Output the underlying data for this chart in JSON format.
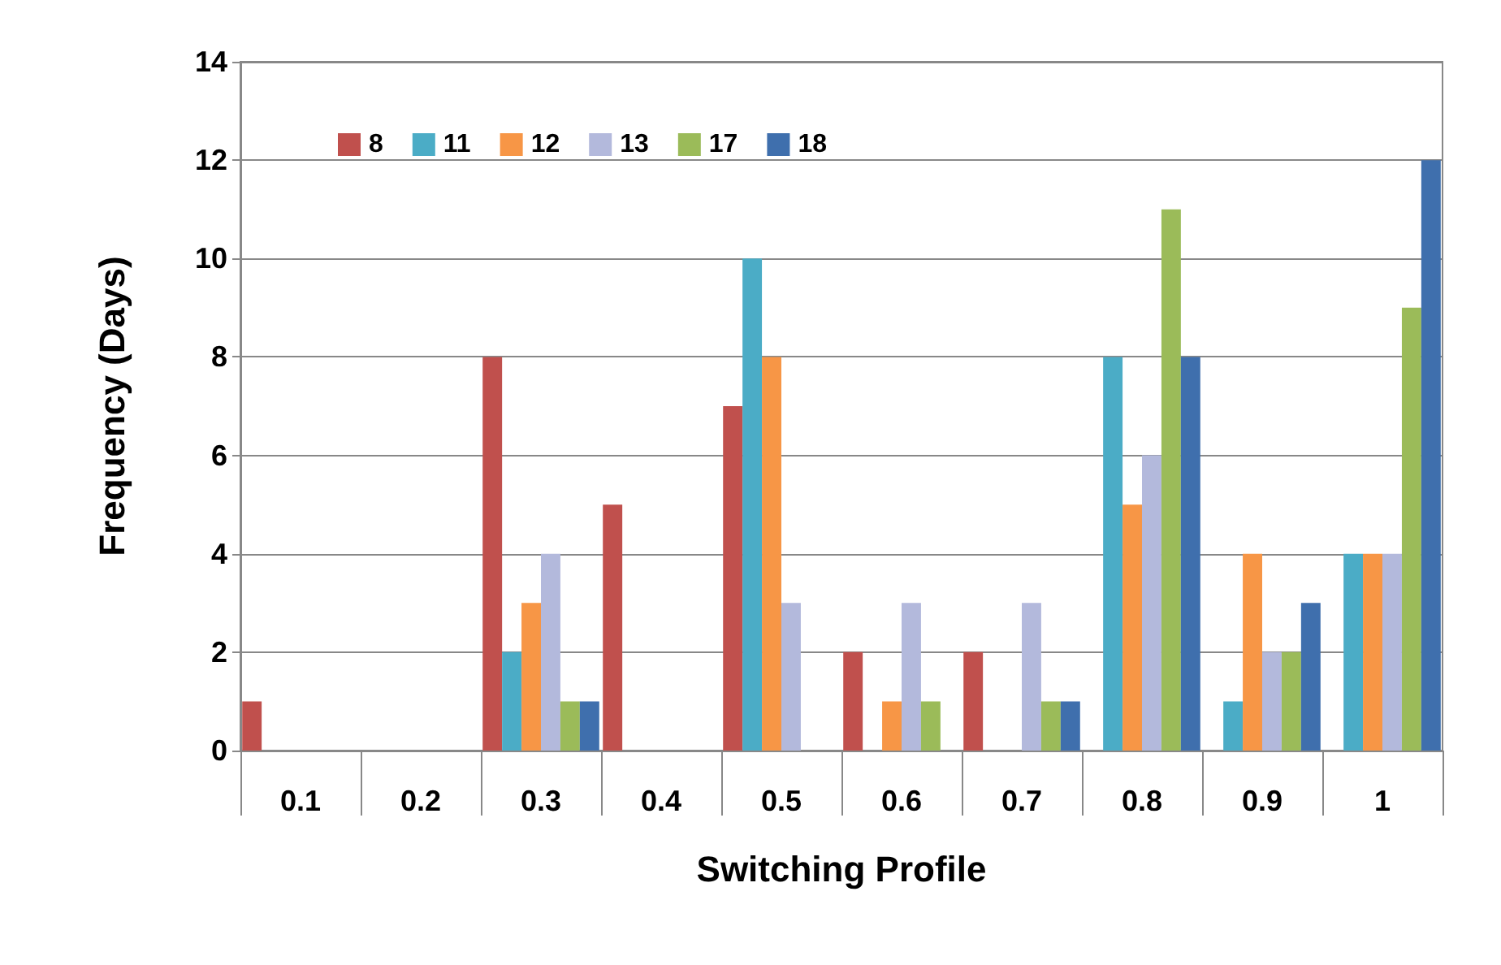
{
  "chart_data": {
    "type": "bar",
    "xlabel": "Switching Profile",
    "ylabel": "Frequency (Days)",
    "categories": [
      "0.1",
      "0.2",
      "0.3",
      "0.4",
      "0.5",
      "0.6",
      "0.7",
      "0.8",
      "0.9",
      "1"
    ],
    "series": [
      {
        "name": "8",
        "color": "#c0504d",
        "values": [
          1,
          0,
          8,
          5,
          7,
          2,
          2,
          0,
          0,
          0
        ]
      },
      {
        "name": "11",
        "color": "#4bacc6",
        "values": [
          0,
          0,
          2,
          0,
          10,
          0,
          0,
          8,
          1,
          4
        ]
      },
      {
        "name": "12",
        "color": "#f79646",
        "values": [
          0,
          0,
          3,
          0,
          8,
          1,
          0,
          5,
          4,
          4
        ]
      },
      {
        "name": "13",
        "color": "#b3b9dc",
        "values": [
          0,
          0,
          4,
          0,
          3,
          3,
          3,
          6,
          2,
          4
        ]
      },
      {
        "name": "17",
        "color": "#9bbb59",
        "values": [
          0,
          0,
          1,
          0,
          0,
          1,
          1,
          11,
          2,
          9
        ]
      },
      {
        "name": "18",
        "color": "#3f6fad",
        "values": [
          0,
          0,
          1,
          0,
          0,
          0,
          1,
          8,
          3,
          12
        ]
      }
    ],
    "ylim": [
      0,
      14
    ],
    "yticks": [
      0,
      2,
      4,
      6,
      8,
      10,
      12,
      14
    ],
    "grid": "y",
    "legend": "top left"
  }
}
